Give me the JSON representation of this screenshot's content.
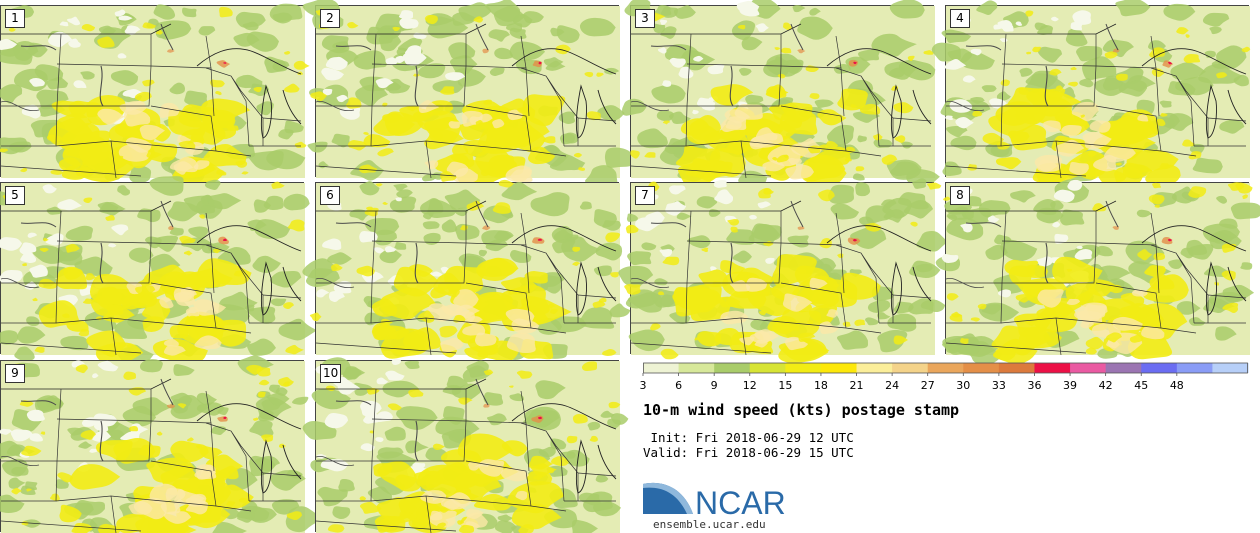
{
  "panels": [
    {
      "label": "1"
    },
    {
      "label": "2"
    },
    {
      "label": "3"
    },
    {
      "label": "4"
    },
    {
      "label": "5"
    },
    {
      "label": "6"
    },
    {
      "label": "7"
    },
    {
      "label": "8"
    },
    {
      "label": "9"
    },
    {
      "label": "10"
    }
  ],
  "colorbar": {
    "ticks": [
      "3",
      "6",
      "9",
      "12",
      "15",
      "18",
      "21",
      "24",
      "27",
      "30",
      "33",
      "36",
      "39",
      "42",
      "45",
      "48"
    ],
    "colors": [
      "#eef3d4",
      "#d7e89a",
      "#a9cc6a",
      "#d7e435",
      "#f2ec14",
      "#fde80a",
      "#fbee9a",
      "#f4d38a",
      "#eaa65c",
      "#e48f48",
      "#dc7a3c",
      "#ec1046",
      "#ea5aa2",
      "#9b75b2",
      "#6b6df2",
      "#8a9cf6",
      "#b7cff8"
    ]
  },
  "title": "10-m wind speed (kts) postage stamp",
  "init": " Init: Fri 2018-06-29 12 UTC",
  "valid": "Valid: Fri 2018-06-29 15 UTC",
  "logo": {
    "name": "NCAR",
    "url": "ensemble.ucar.edu",
    "colors": {
      "blue": "#2a6aa8",
      "lightblue": "#8fb8dc"
    }
  },
  "map_colors": {
    "base": "#e4ecb4",
    "calm": "#f6f8ea",
    "green": "#a9cc6a",
    "yellow": "#f2ec14",
    "peach": "#fbe9a8",
    "orange": "#e48f48",
    "red": "#ec1046"
  }
}
